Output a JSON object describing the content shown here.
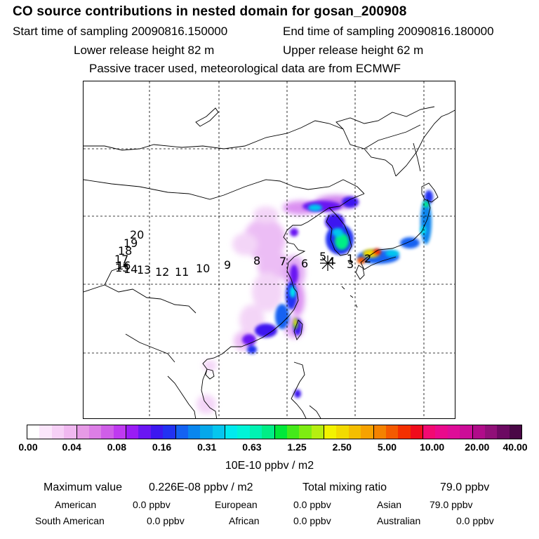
{
  "header": {
    "title": "CO  source contributions in nested domain for gosan_200908",
    "start_label": "Start time of sampling 20090816.150000",
    "end_label": "End time of sampling 20090816.180000",
    "lower_label": "Lower release height   82 m",
    "upper_label": "Upper release height   62 m",
    "passive_label": "Passive tracer used, meteorological data are from ECMWF"
  },
  "map": {
    "receptor_marker": "asterisk-icon",
    "trajectory_labels": [
      "1",
      "2",
      "3",
      "4",
      "5",
      "6",
      "7",
      "8",
      "9",
      "10",
      "11",
      "12",
      "13",
      "14",
      "15",
      "16",
      "17",
      "18",
      "19",
      "20"
    ]
  },
  "colorbar": {
    "tick_labels": [
      "0.00",
      "0.04",
      "0.08",
      "0.16",
      "0.31",
      "0.63",
      "1.25",
      "2.50",
      "5.00",
      "10.00",
      "20.00",
      "40.00"
    ],
    "unit": "10E-10 ppbv / m2",
    "colors": [
      "#ffffff",
      "#fbe6fb",
      "#f6d0f6",
      "#f0b8f0",
      "#e69ae6",
      "#dc7ee6",
      "#cf5ee8",
      "#bf3af0",
      "#9a1cf5",
      "#6a16f2",
      "#3c18f0",
      "#2232f2",
      "#1462f2",
      "#0a86ee",
      "#06a8ea",
      "#06c6ee",
      "#00eaee",
      "#00f4d8",
      "#00f2b2",
      "#00ee86",
      "#00e83a",
      "#44ea1a",
      "#7eec12",
      "#b6ee10",
      "#f2f200",
      "#f2da00",
      "#f4be00",
      "#f6a200",
      "#f48200",
      "#f45a00",
      "#f43000",
      "#f00c1c",
      "#f20a72",
      "#ea0a8c",
      "#de0c98",
      "#cc0c98",
      "#b00c8a",
      "#901078",
      "#6c0a62",
      "#4a0846"
    ]
  },
  "stats": {
    "max_label": "Maximum value",
    "max_value": "0.226E-08 ppbv / m2",
    "total_label": "Total mixing ratio",
    "total_value": "79.0 ppbv",
    "american_label": "American",
    "american_value": "0.0 ppbv",
    "european_label": "European",
    "european_value": "0.0 ppbv",
    "asian_label": "Asian",
    "asian_value": "79.0 ppbv",
    "south_american_label": "South American",
    "south_american_value": "0.0 ppbv",
    "african_label": "African",
    "african_value": "0.0 ppbv",
    "australian_label": "Australian",
    "australian_value": "0.0 ppbv"
  }
}
